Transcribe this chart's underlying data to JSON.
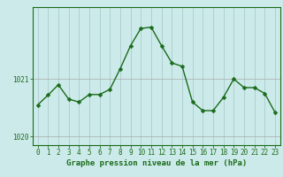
{
  "x": [
    0,
    1,
    2,
    3,
    4,
    5,
    6,
    7,
    8,
    9,
    10,
    11,
    12,
    13,
    14,
    15,
    16,
    17,
    18,
    19,
    20,
    21,
    22,
    23
  ],
  "y": [
    1020.55,
    1020.72,
    1020.9,
    1020.65,
    1020.6,
    1020.73,
    1020.73,
    1020.82,
    1021.18,
    1021.58,
    1021.88,
    1021.9,
    1021.58,
    1021.28,
    1021.22,
    1020.6,
    1020.45,
    1020.45,
    1020.68,
    1021.0,
    1020.85,
    1020.85,
    1020.75,
    1020.42
  ],
  "line_color": "#1a6b1a",
  "marker": "D",
  "markersize": 2.5,
  "background_color": "#cceaea",
  "grid_color": "#aacccc",
  "axis_color": "#1a6b1a",
  "xlabel": "Graphe pression niveau de la mer (hPa)",
  "xlabel_fontsize": 6.5,
  "ytick_labels": [
    "1020",
    "1021"
  ],
  "yticks": [
    1020.0,
    1021.0
  ],
  "ylim": [
    1019.85,
    1022.25
  ],
  "xlim": [
    -0.5,
    23.5
  ],
  "xtick_labels": [
    "0",
    "1",
    "2",
    "3",
    "4",
    "5",
    "6",
    "7",
    "8",
    "9",
    "10",
    "11",
    "12",
    "13",
    "14",
    "15",
    "16",
    "17",
    "18",
    "19",
    "20",
    "21",
    "22",
    "23"
  ],
  "tick_fontsize": 5.5,
  "linewidth": 1.0,
  "hline_y": [
    1020.0,
    1021.0
  ],
  "hline_color": "#aaaaaa",
  "hline_lw": 0.5
}
